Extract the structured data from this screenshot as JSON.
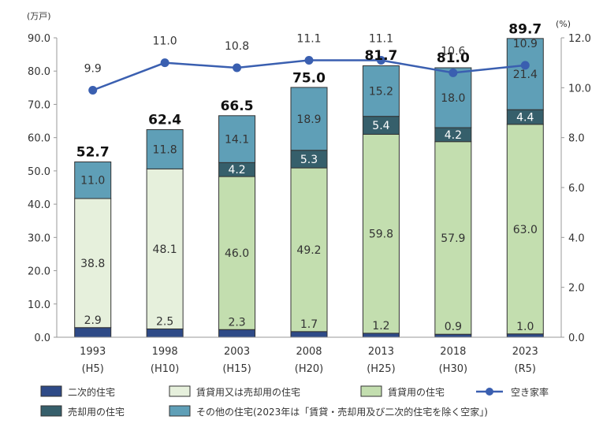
{
  "chart_data": {
    "type": "bar",
    "stacked": true,
    "categories": [
      "1993",
      "1998",
      "2003",
      "2008",
      "2013",
      "2018",
      "2023"
    ],
    "category_sublabels": [
      "(H5)",
      "(H10)",
      "(H15)",
      "(H20)",
      "(H25)",
      "(H30)",
      "(R5)"
    ],
    "y_left_unit": "(万戸)",
    "y_right_unit": "(%)",
    "ylim": [
      0,
      90
    ],
    "y_ticks": [
      "0.0",
      "10.0",
      "20.0",
      "30.0",
      "40.0",
      "50.0",
      "60.0",
      "70.0",
      "80.0",
      "90.0"
    ],
    "y2lim": [
      0,
      12
    ],
    "y2_ticks": [
      "0.0",
      "2.0",
      "4.0",
      "6.0",
      "8.0",
      "10.0",
      "12.0"
    ],
    "series": [
      {
        "name": "二次的住宅",
        "color": "#2e4a87",
        "values": [
          2.9,
          2.5,
          2.3,
          1.7,
          1.2,
          0.9,
          1.0
        ],
        "labels": [
          "2.9",
          "2.5",
          "2.3",
          "1.7",
          "1.2",
          "0.9",
          "1.0"
        ]
      },
      {
        "name": "賃貸用又は売却用の住宅",
        "color": "#e6f0dc",
        "values": [
          38.8,
          48.1,
          0,
          0,
          0,
          0,
          0
        ],
        "labels": [
          "38.8",
          "48.1",
          "",
          "",
          "",
          "",
          ""
        ]
      },
      {
        "name": "賃貸用の住宅",
        "color": "#c3deaf",
        "values": [
          0,
          0,
          46.0,
          49.2,
          59.8,
          57.9,
          63.0
        ],
        "labels": [
          "",
          "",
          "46.0",
          "49.2",
          "59.8",
          "57.9",
          "63.0"
        ]
      },
      {
        "name": "売却用の住宅",
        "color": "#365f6b",
        "values": [
          0,
          0,
          4.2,
          5.3,
          5.4,
          4.2,
          4.4
        ],
        "labels": [
          "",
          "",
          "4.2",
          "5.3",
          "5.4",
          "4.2",
          "4.4"
        ]
      },
      {
        "name": "その他の住宅(2023年は「賃貸・売却用及び二次的住宅を除く空家」)",
        "color": "#5f9fb7",
        "values": [
          11.0,
          11.8,
          14.1,
          18.9,
          15.2,
          18.0,
          21.4
        ],
        "labels": [
          "11.0",
          "11.8",
          "14.1",
          "18.9",
          "15.2",
          "18.0",
          "21.4"
        ]
      }
    ],
    "totals": [
      "52.7",
      "62.4",
      "66.5",
      "75.0",
      "81.7",
      "81.0",
      "89.7"
    ],
    "line_series": {
      "name": "空き家率",
      "color": "#3a5fb0",
      "values": [
        9.9,
        11.0,
        10.8,
        11.1,
        11.1,
        10.6,
        10.9
      ],
      "labels": [
        "9.9",
        "11.0",
        "10.8",
        "11.1",
        "11.1",
        "10.6",
        "10.9"
      ]
    },
    "legend_position": "bottom"
  }
}
